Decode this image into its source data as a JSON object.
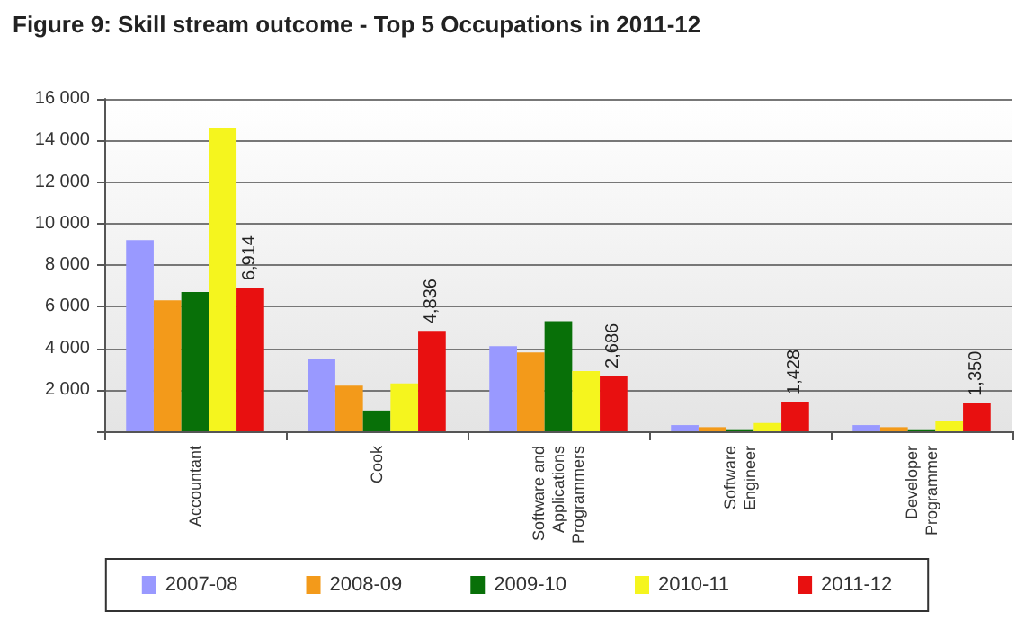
{
  "chart_data": {
    "type": "bar",
    "title": "Figure 9: Skill stream outcome - Top 5 Occupations in 2011-12",
    "categories": [
      "Accountant",
      "Cook",
      "Software and Applications Programmers",
      "Software Engineer",
      "Developer Programmer"
    ],
    "series": [
      {
        "name": "2007-08",
        "color": "#9999ff",
        "values": [
          9200,
          3500,
          4100,
          300,
          300
        ]
      },
      {
        "name": "2008-09",
        "color": "#f39a1a",
        "values": [
          6300,
          2200,
          3800,
          200,
          200
        ]
      },
      {
        "name": "2009-10",
        "color": "#087008",
        "values": [
          6700,
          1000,
          5300,
          100,
          100
        ]
      },
      {
        "name": "2010-11",
        "color": "#f5f51e",
        "values": [
          14600,
          2300,
          2900,
          400,
          500
        ]
      },
      {
        "name": "2011-12",
        "color": "#e81010",
        "values": [
          6914,
          4836,
          2686,
          1428,
          1350
        ],
        "value_labels": [
          "6,914",
          "4,836",
          "2,686",
          "1,428",
          "1,350"
        ]
      }
    ],
    "ylim": [
      0,
      16000
    ],
    "yticks": [
      {
        "value": 0,
        "label": null
      },
      {
        "value": 2000,
        "label": "2 000"
      },
      {
        "value": 4000,
        "label": "4 000"
      },
      {
        "value": 6000,
        "label": "6 000"
      },
      {
        "value": 8000,
        "label": "8 000"
      },
      {
        "value": 10000,
        "label": "10 000"
      },
      {
        "value": 12000,
        "label": "12 000"
      },
      {
        "value": 14000,
        "label": "14 000"
      },
      {
        "value": 16000,
        "label": "16 000"
      }
    ],
    "grid": "y",
    "legend": "bottom"
  }
}
